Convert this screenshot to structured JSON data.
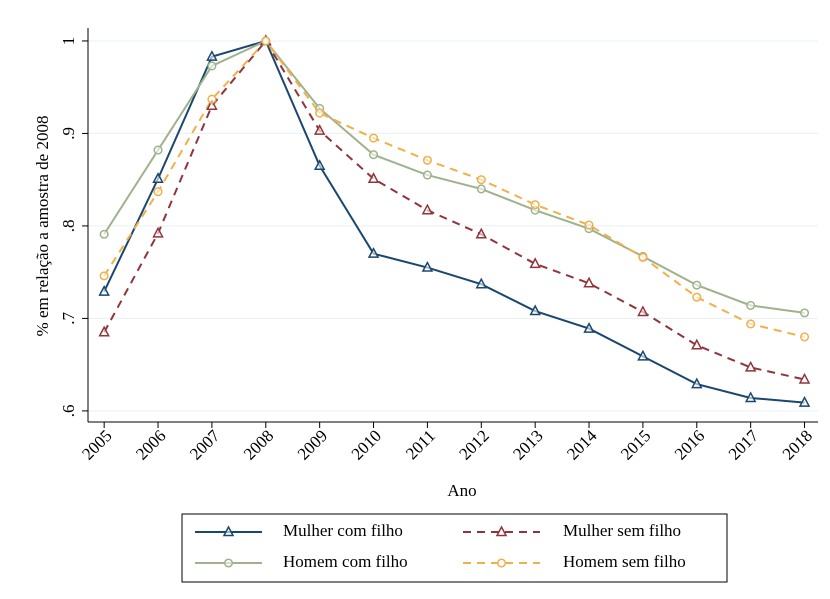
{
  "chart_data": {
    "type": "line",
    "x": [
      2005,
      2006,
      2007,
      2008,
      2009,
      2010,
      2011,
      2012,
      2013,
      2014,
      2015,
      2016,
      2017,
      2018
    ],
    "xlabel": "Ano",
    "ylabel": "% em relação a amostra de 2008",
    "xlim": [
      2004.7,
      2018.25
    ],
    "xticks": [
      2005,
      2006,
      2007,
      2008,
      2009,
      2010,
      2011,
      2012,
      2013,
      2014,
      2015,
      2016,
      2017,
      2018
    ],
    "ylim": [
      0.588,
      1.014
    ],
    "yticks": [
      {
        "value": 0.6,
        "label": ".6"
      },
      {
        "value": 0.7,
        "label": ".7"
      },
      {
        "value": 0.8,
        "label": ".8"
      },
      {
        "value": 0.9,
        "label": ".9"
      },
      {
        "value": 1,
        "label": "1"
      }
    ],
    "grid": true,
    "legend": "bottom",
    "series": [
      {
        "name": "Mulher com filho",
        "color": "#1a476f",
        "dash": false,
        "marker": "triangle",
        "values": [
          0.729,
          0.851,
          0.983,
          1,
          0.865,
          0.77,
          0.755,
          0.737,
          0.708,
          0.689,
          0.659,
          0.629,
          0.614,
          0.609
        ]
      },
      {
        "name": "Mulher sem filho",
        "color": "#90353b",
        "dash": true,
        "marker": "triangle",
        "values": [
          0.685,
          0.792,
          0.93,
          1,
          0.903,
          0.851,
          0.817,
          0.791,
          0.759,
          0.738,
          0.707,
          0.671,
          0.647,
          0.634
        ]
      },
      {
        "name": "Homem com filho",
        "color": "#9fb28c",
        "dash": false,
        "marker": "circle",
        "values": [
          0.791,
          0.882,
          0.973,
          1,
          0.927,
          0.877,
          0.855,
          0.84,
          0.817,
          0.797,
          0.767,
          0.736,
          0.714,
          0.706
        ]
      },
      {
        "name": "Homem sem filho",
        "color": "#f0b04a",
        "dash": true,
        "marker": "circle",
        "values": [
          0.746,
          0.837,
          0.937,
          1,
          0.922,
          0.895,
          0.871,
          0.85,
          0.823,
          0.801,
          0.766,
          0.723,
          0.694,
          0.68
        ]
      }
    ]
  }
}
